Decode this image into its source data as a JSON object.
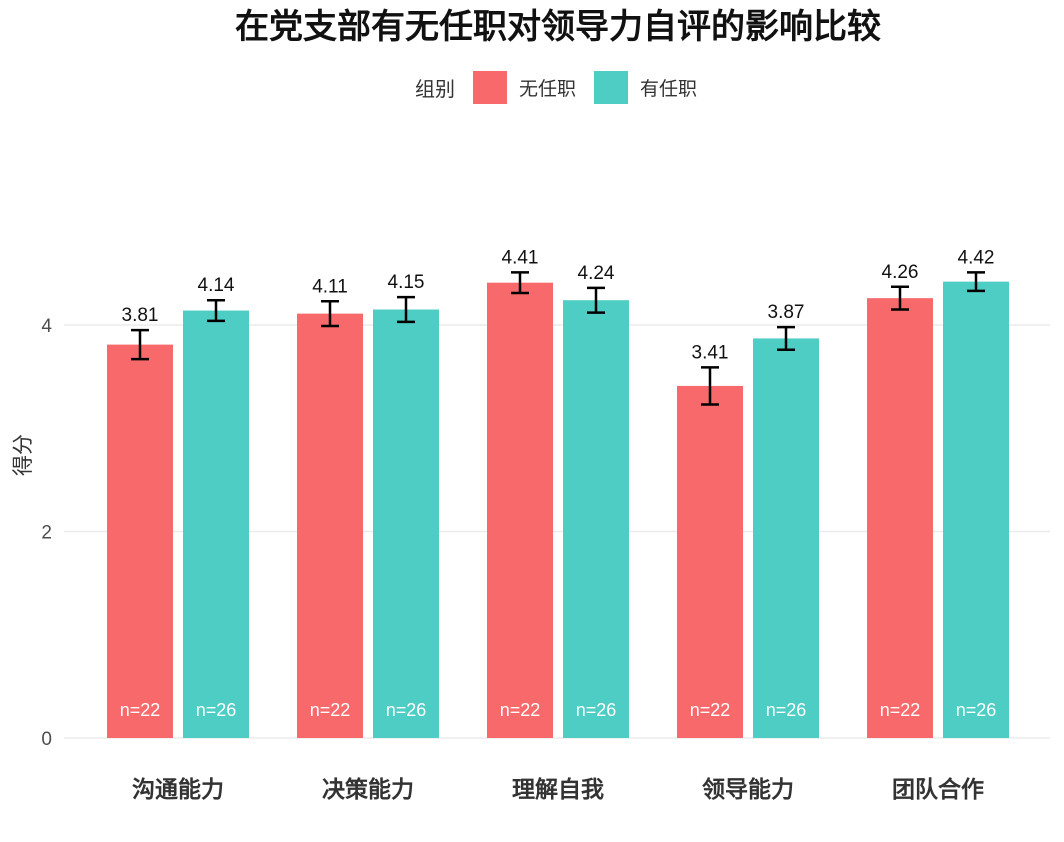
{
  "chart_data": {
    "type": "bar",
    "title": "在党支部有无任职对领导力自评的影响比较",
    "ylabel": "得分",
    "xlabel": "",
    "ylim": [
      0,
      5
    ],
    "yticks": [
      0,
      2,
      4
    ],
    "grid": true,
    "legend": {
      "title": "组别",
      "placement": "top"
    },
    "categories": [
      "沟通能力",
      "决策能力",
      "理解自我",
      "领导能力",
      "团队合作"
    ],
    "series": [
      {
        "name": "无任职",
        "color": "#F8696B",
        "values": [
          3.81,
          4.11,
          4.41,
          3.41,
          4.26
        ],
        "error_low": [
          3.67,
          3.99,
          4.31,
          3.23,
          4.15
        ],
        "error_high": [
          3.95,
          4.23,
          4.51,
          3.59,
          4.37
        ],
        "labels": [
          "3.81",
          "4.11",
          "4.41",
          "3.41",
          "4.26"
        ],
        "n_labels": [
          "n=22",
          "n=22",
          "n=22",
          "n=22",
          "n=22"
        ]
      },
      {
        "name": "有任职",
        "color": "#4ECDC4",
        "values": [
          4.14,
          4.15,
          4.24,
          3.87,
          4.42
        ],
        "error_low": [
          4.04,
          4.03,
          4.12,
          3.76,
          4.33
        ],
        "error_high": [
          4.24,
          4.27,
          4.36,
          3.98,
          4.51
        ],
        "labels": [
          "4.14",
          "4.15",
          "4.24",
          "3.87",
          "4.42"
        ],
        "n_labels": [
          "n=26",
          "n=26",
          "n=26",
          "n=26",
          "n=26"
        ]
      }
    ]
  }
}
